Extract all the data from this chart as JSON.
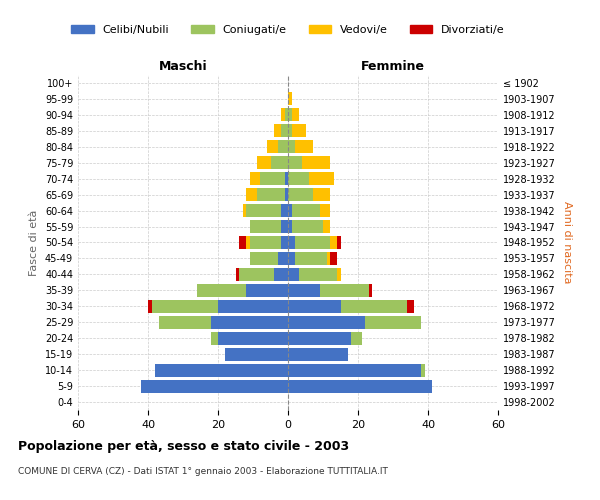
{
  "age_groups": [
    "0-4",
    "5-9",
    "10-14",
    "15-19",
    "20-24",
    "25-29",
    "30-34",
    "35-39",
    "40-44",
    "45-49",
    "50-54",
    "55-59",
    "60-64",
    "65-69",
    "70-74",
    "75-79",
    "80-84",
    "85-89",
    "90-94",
    "95-99",
    "100+"
  ],
  "year_labels": [
    "1998-2002",
    "1993-1997",
    "1988-1992",
    "1983-1987",
    "1978-1982",
    "1973-1977",
    "1968-1972",
    "1963-1967",
    "1958-1962",
    "1953-1957",
    "1948-1952",
    "1943-1947",
    "1938-1942",
    "1933-1937",
    "1928-1932",
    "1923-1927",
    "1918-1922",
    "1913-1917",
    "1908-1912",
    "1903-1907",
    "≤ 1902"
  ],
  "males": {
    "celibi": [
      0,
      42,
      38,
      18,
      20,
      22,
      20,
      12,
      4,
      3,
      2,
      2,
      2,
      1,
      1,
      0,
      0,
      0,
      0,
      0,
      0
    ],
    "coniugati": [
      0,
      0,
      0,
      0,
      2,
      15,
      19,
      14,
      10,
      8,
      9,
      9,
      10,
      8,
      7,
      5,
      3,
      2,
      1,
      0,
      0
    ],
    "vedovi": [
      0,
      0,
      0,
      0,
      0,
      0,
      0,
      0,
      0,
      0,
      1,
      0,
      1,
      3,
      3,
      4,
      3,
      2,
      1,
      0,
      0
    ],
    "divorziati": [
      0,
      0,
      0,
      0,
      0,
      0,
      1,
      0,
      1,
      0,
      2,
      0,
      0,
      0,
      0,
      0,
      0,
      0,
      0,
      0,
      0
    ]
  },
  "females": {
    "nubili": [
      0,
      41,
      38,
      17,
      18,
      22,
      15,
      9,
      3,
      2,
      2,
      1,
      1,
      0,
      0,
      0,
      0,
      0,
      0,
      0,
      0
    ],
    "coniugate": [
      0,
      0,
      1,
      0,
      3,
      16,
      19,
      14,
      11,
      9,
      10,
      9,
      8,
      7,
      6,
      4,
      2,
      1,
      1,
      0,
      0
    ],
    "vedove": [
      0,
      0,
      0,
      0,
      0,
      0,
      0,
      0,
      1,
      1,
      2,
      2,
      3,
      5,
      7,
      8,
      5,
      4,
      2,
      1,
      0
    ],
    "divorziate": [
      0,
      0,
      0,
      0,
      0,
      0,
      2,
      1,
      0,
      2,
      1,
      0,
      0,
      0,
      0,
      0,
      0,
      0,
      0,
      0,
      0
    ]
  },
  "colors": {
    "celibi": "#4472c4",
    "coniugati": "#9dc45f",
    "vedovi": "#ffc000",
    "divorziati": "#cc0000"
  },
  "xlim": 60,
  "title": "Popolazione per età, sesso e stato civile - 2003",
  "subtitle": "COMUNE DI CERVA (CZ) - Dati ISTAT 1° gennaio 2003 - Elaborazione TUTTITALIA.IT",
  "ylabel_left": "Fasce di età",
  "ylabel_right": "Anni di nascita",
  "legend_labels": [
    "Celibi/Nubili",
    "Coniugati/e",
    "Vedovi/e",
    "Divorziati/e"
  ],
  "maschi_label": "Maschi",
  "femmine_label": "Femmine"
}
